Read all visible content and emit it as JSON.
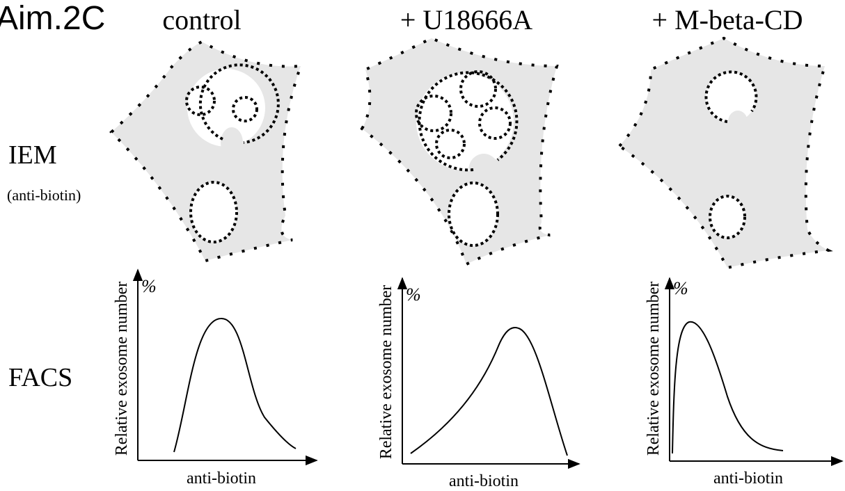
{
  "title": "Aim.2C",
  "row_labels": {
    "iem": "IEM",
    "iem_note": "(anti-biotin)",
    "facs": "FACS"
  },
  "panels": [
    {
      "condition": "control",
      "y_label": "Relative exosome number",
      "y_unit": "%",
      "x_label": "anti-biotin"
    },
    {
      "condition": "+ U18666A",
      "y_label": "Relative exosome number",
      "y_unit": "%",
      "x_label": "anti-biotin"
    },
    {
      "condition": "+ M-beta-CD",
      "y_label": "Relative exosome number",
      "y_unit": "%",
      "x_label": "anti-biotin"
    }
  ]
}
